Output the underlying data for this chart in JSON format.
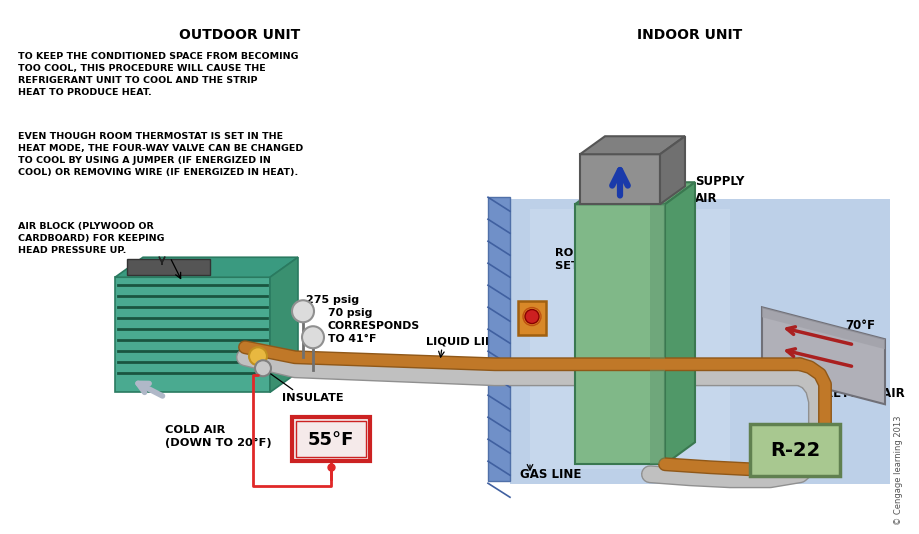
{
  "bg_color": "#ffffff",
  "outdoor_unit_label": "OUTDOOR UNIT",
  "indoor_unit_label": "INDOOR UNIT",
  "text_block1": "TO KEEP THE CONDITIONED SPACE FROM BECOMING\nTOO COOL, THIS PROCEDURE WILL CAUSE THE\nREFRIGERANT UNIT TO COOL AND THE STRIP\nHEAT TO PRODUCE HEAT.",
  "text_block2": "EVEN THOUGH ROOM THERMOSTAT IS SET IN THE\nHEAT MODE, THE FOUR-WAY VALVE CAN BE CHANGED\nTO COOL BY USING A JUMPER (IF ENERGIZED IN\nCOOL) OR REMOVING WIRE (IF ENERGIZED IN HEAT).",
  "text_block3": "AIR BLOCK (PLYWOOD OR\nCARDBOARD) FOR KEEPING\nHEAD PRESSURE UP.",
  "label_275psig": "275 psig",
  "label_70psig": "70 psig\nCORRESPONDS\nTO 41°F",
  "label_liquid_line": "LIQUID LINE",
  "label_insulate": "INSULATE",
  "label_cold_air": "COLD AIR\n(DOWN TO 20°F)",
  "label_55F": "55°F",
  "label_room_thermostat": "ROOM THERMOSTAT\nSET TO HEAT",
  "label_supply_air": "SUPPLY\nAIR",
  "label_70F": "70°F",
  "label_return_air": "RETURN AIR",
  "label_gas_line": "GAS LINE",
  "label_r22": "R-22",
  "label_copyright": "© Cengage learning 2013",
  "outdoor_coil_color": "#4aaa90",
  "outdoor_coil_dark": "#2a7a60",
  "outdoor_coil_right": "#3a9070",
  "outdoor_coil_line": "#1a5540",
  "outdoor_top_color": "#3a9a80",
  "outdoor_fan_color": "#555555",
  "indoor_wall_blue": "#6888c8",
  "indoor_wall_stripe": "#4a68a8",
  "indoor_bg_color": "#b0c8e0",
  "indoor_bg_grad_top": "#d0dff0",
  "indoor_handler_color": "#80b888",
  "indoor_handler_top": "#6aa878",
  "indoor_handler_right": "#509868",
  "indoor_handler_edge": "#3a7850",
  "supply_duct_color": "#909090",
  "supply_duct_top": "#808080",
  "supply_duct_right": "#707070",
  "supply_duct_edge": "#555555",
  "return_duct_color": "#a0a0a8",
  "return_duct_top": "#909098",
  "return_duct_edge": "#606068",
  "copper_color": "#c07828",
  "copper_dark": "#905818",
  "silver_color": "#c0c0c0",
  "silver_dark": "#909090",
  "thermostat_color": "#d88828",
  "thermostat_edge": "#a06010",
  "thermostat_btn": "#cc2020",
  "gauge_color": "#dcdcdc",
  "gauge_edge": "#909090",
  "insulate_gold": "#e8b840",
  "insulate_grey": "#c8c8c8",
  "red_wire": "#e02828",
  "temp_box_border": "#cc2222",
  "temp_box_bg": "#f5eaea",
  "r22_bg": "#a8c890",
  "r22_edge": "#608050",
  "cold_air_arrow": "#b0b8c8",
  "blue_arrow": "#1a3aaa"
}
